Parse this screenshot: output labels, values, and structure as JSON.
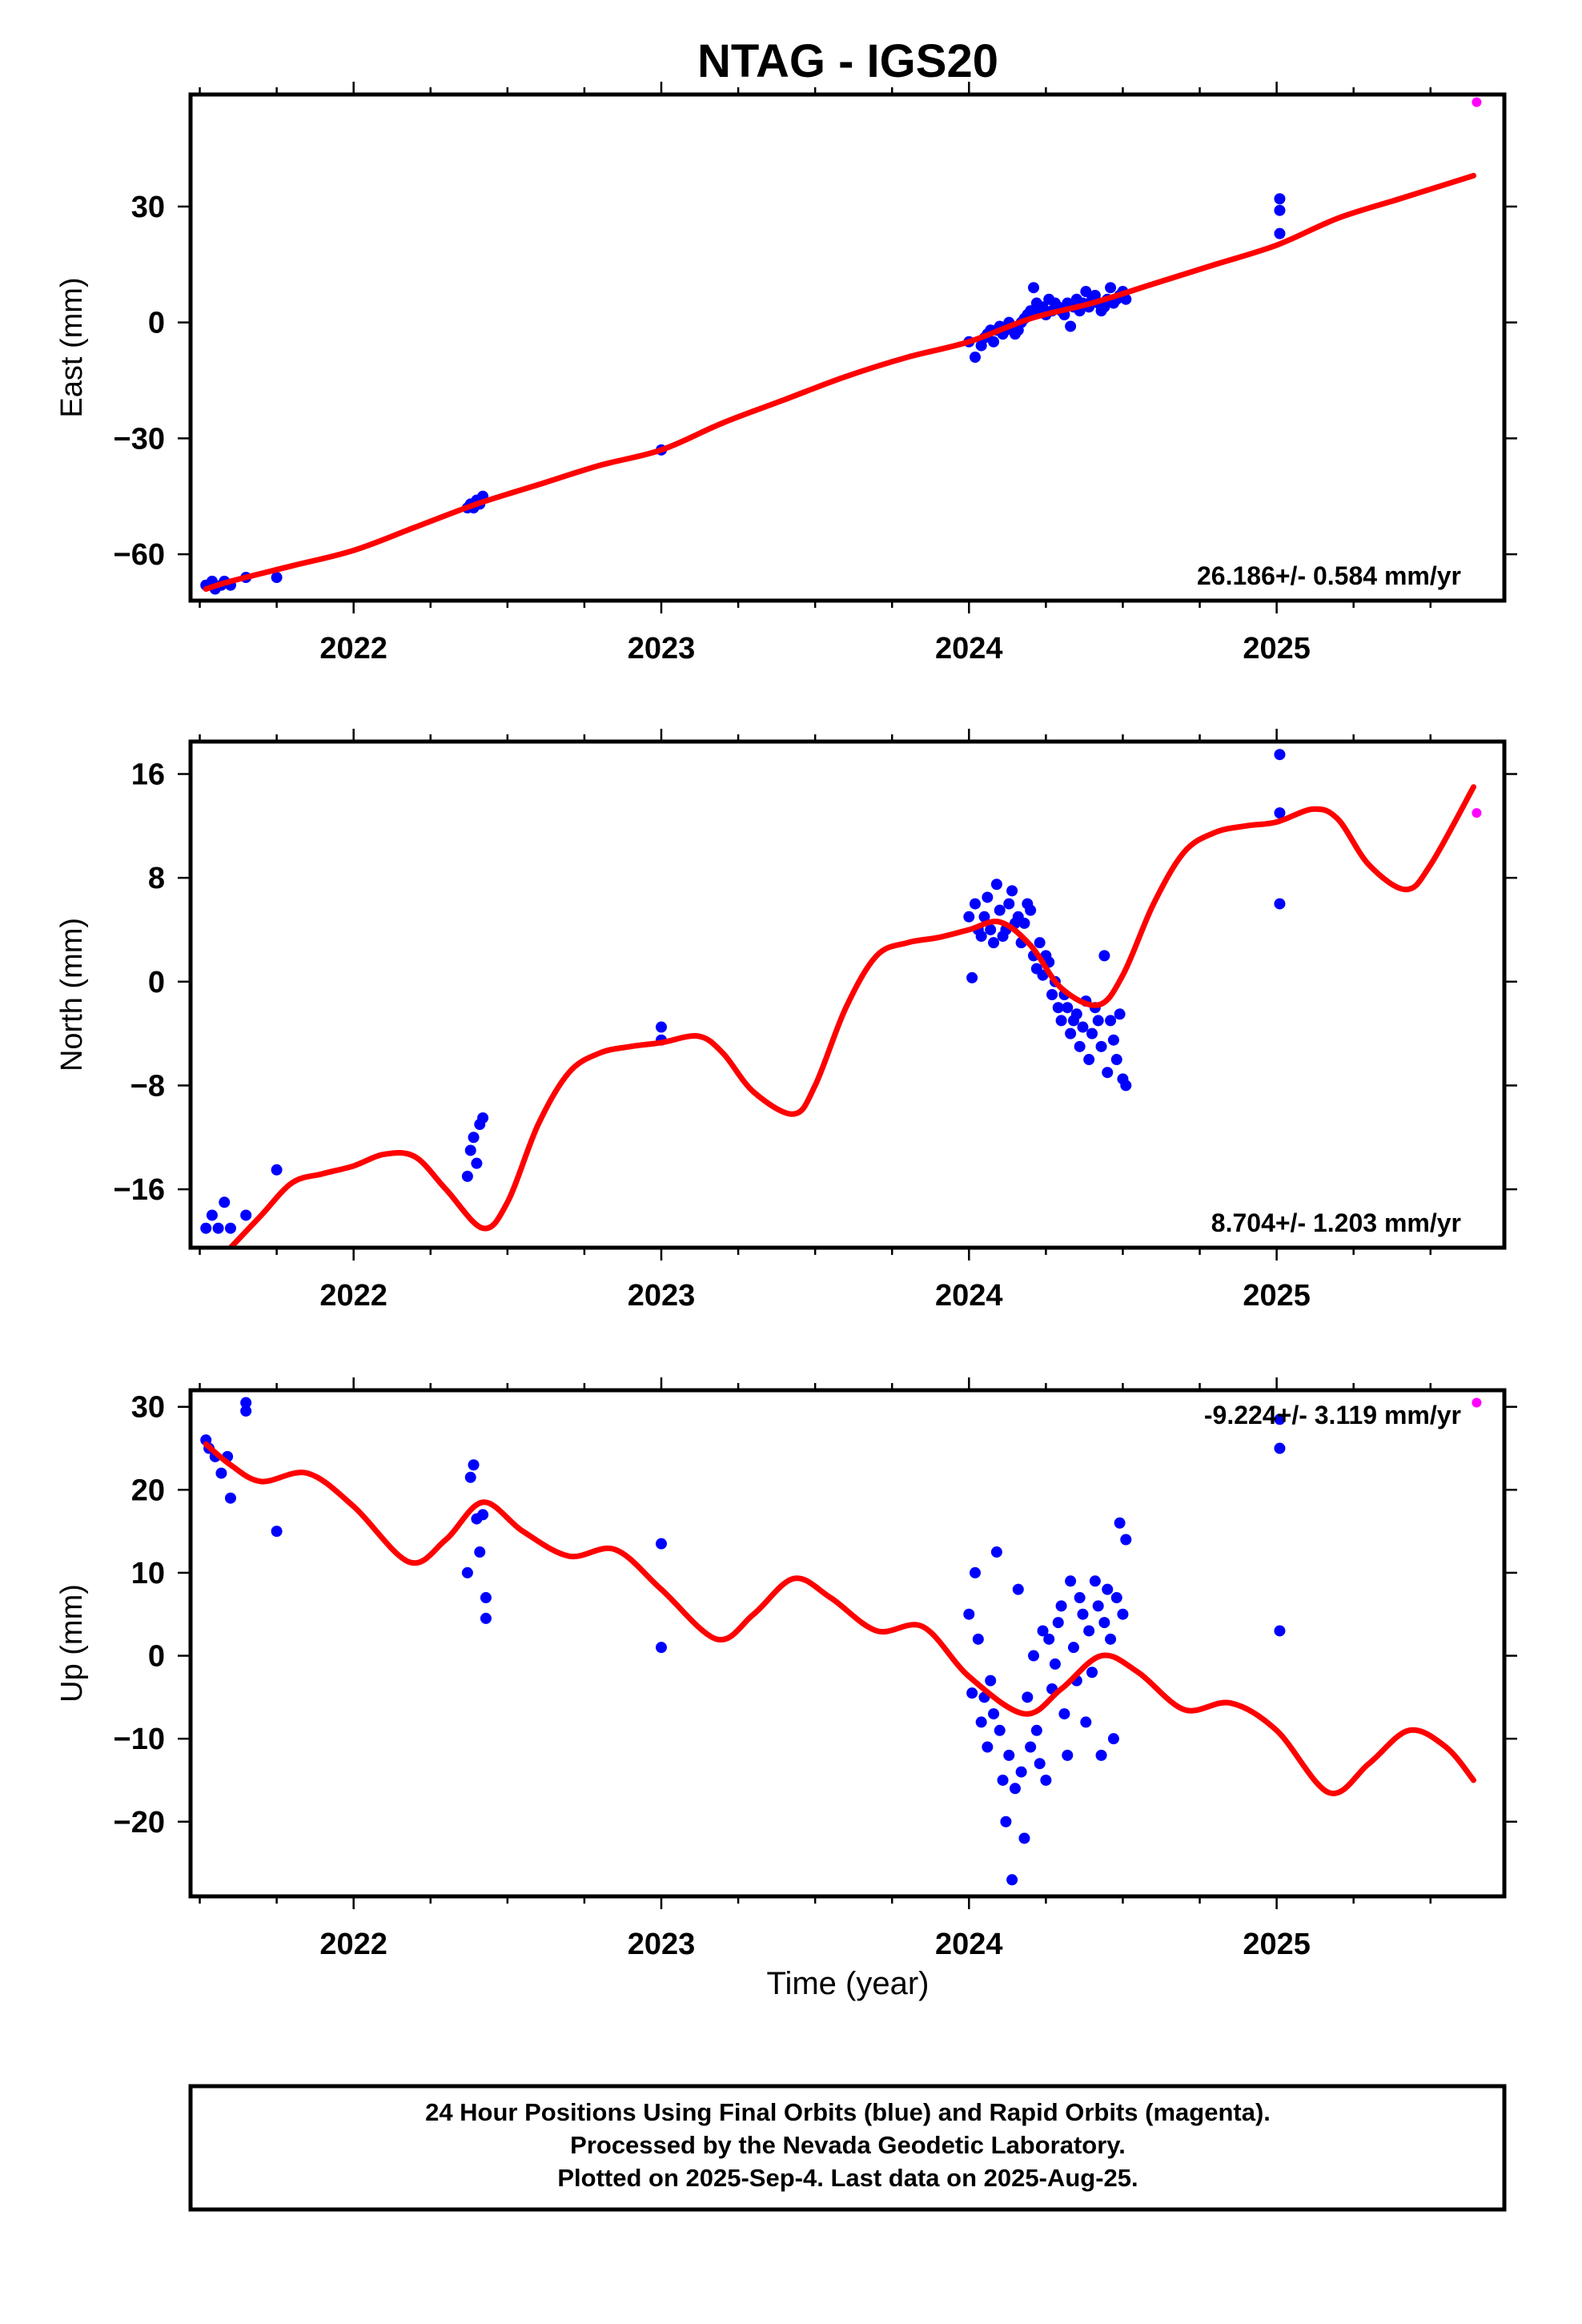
{
  "chart_data": {
    "type": "scatter",
    "title": "NTAG - IGS20",
    "xlabel": "Time (year)",
    "xlim": [
      2021.47,
      2025.74
    ],
    "x_ticks": [
      "2022",
      "2023",
      "2024",
      "2025"
    ],
    "colors": {
      "final": "#0000ff",
      "rapid": "#ff00ff",
      "model": "#ff0000"
    },
    "panels": [
      {
        "id": "east",
        "ylabel": "East (mm)",
        "ylim": [
          -72,
          59
        ],
        "y_ticks": [
          30,
          0,
          -30,
          -60
        ],
        "y_tick_labels": [
          "30",
          "0",
          "−30",
          "−60"
        ],
        "rate": "26.186+/- 0.584 mm/yr",
        "model": {
          "x": [
            2021.52,
            2021.6,
            2021.8,
            2022.0,
            2022.2,
            2022.4,
            2022.6,
            2022.8,
            2023.0,
            2023.2,
            2023.4,
            2023.6,
            2023.8,
            2024.0,
            2024.2,
            2024.4,
            2024.6,
            2024.8,
            2025.0,
            2025.2,
            2025.4,
            2025.64
          ],
          "y": [
            -69,
            -67,
            -63,
            -59,
            -53,
            -47,
            -42,
            -37,
            -33,
            -26,
            -20,
            -14,
            -9,
            -5,
            1,
            5,
            10,
            15,
            20,
            27,
            32,
            38
          ]
        },
        "final": {
          "x": [
            2021.52,
            2021.54,
            2021.55,
            2021.57,
            2021.58,
            2021.6,
            2021.65,
            2021.75,
            2022.37,
            2022.38,
            2022.39,
            2022.4,
            2022.41,
            2022.42,
            2023.0,
            2024.0,
            2024.02,
            2024.04,
            2024.05,
            2024.06,
            2024.07,
            2024.08,
            2024.09,
            2024.1,
            2024.11,
            2024.12,
            2024.13,
            2024.14,
            2024.15,
            2024.16,
            2024.17,
            2024.18,
            2024.19,
            2024.2,
            2024.21,
            2024.22,
            2024.23,
            2024.24,
            2024.25,
            2024.26,
            2024.27,
            2024.28,
            2024.29,
            2024.3,
            2024.31,
            2024.32,
            2024.33,
            2024.34,
            2024.35,
            2024.36,
            2024.37,
            2024.38,
            2024.39,
            2024.4,
            2024.41,
            2024.42,
            2024.43,
            2024.44,
            2024.45,
            2024.46,
            2024.47,
            2024.48,
            2024.49,
            2024.5,
            2024.51,
            2025.01,
            2025.01,
            2025.01
          ],
          "y": [
            -68,
            -67,
            -69,
            -68,
            -67,
            -68,
            -66,
            -66,
            -48,
            -47,
            -48,
            -46,
            -47,
            -45,
            -33,
            -5,
            -9,
            -6,
            -4,
            -3,
            -2,
            -5,
            -2,
            -1,
            -3,
            -2,
            0,
            -1,
            -3,
            -2,
            0,
            1,
            2,
            3,
            9,
            5,
            3,
            4,
            2,
            6,
            3,
            5,
            4,
            3,
            2,
            5,
            -1,
            4,
            6,
            3,
            5,
            8,
            4,
            6,
            7,
            5,
            3,
            4,
            6,
            9,
            5,
            6,
            7,
            8,
            6,
            32,
            29,
            23
          ]
        },
        "rapid": {
          "x": [
            2025.65
          ],
          "y": [
            57
          ]
        }
      },
      {
        "id": "north",
        "ylabel": "North (mm)",
        "ylim": [
          -20.5,
          18.5
        ],
        "y_ticks": [
          16,
          8,
          0,
          -8,
          -16
        ],
        "y_tick_labels": [
          "16",
          "8",
          "0",
          "−8",
          "−16"
        ],
        "rate": "8.704+/- 1.203 mm/yr",
        "model": {
          "x": [
            2021.6,
            2021.7,
            2021.8,
            2021.9,
            2022.0,
            2022.1,
            2022.2,
            2022.3,
            2022.42,
            2022.5,
            2022.6,
            2022.7,
            2022.8,
            2022.9,
            2023.0,
            2023.12,
            2023.2,
            2023.3,
            2023.43,
            2023.5,
            2023.6,
            2023.7,
            2023.8,
            2023.9,
            2024.0,
            2024.1,
            2024.2,
            2024.3,
            2024.42,
            2024.5,
            2024.6,
            2024.7,
            2024.8,
            2024.9,
            2025.0,
            2025.12,
            2025.2,
            2025.3,
            2025.42,
            2025.5,
            2025.64
          ],
          "y": [
            -20.5,
            -18,
            -15.5,
            -14.8,
            -14.2,
            -13.3,
            -13.5,
            -16,
            -19,
            -17,
            -11,
            -7,
            -5.5,
            -5,
            -4.7,
            -4.2,
            -5.5,
            -8.5,
            -10.2,
            -8,
            -2,
            2,
            3,
            3.4,
            4,
            4.6,
            2.8,
            -0.5,
            -1.8,
            0.5,
            6,
            10,
            11.5,
            12,
            12.3,
            13.3,
            12.5,
            9,
            7.1,
            9,
            15
          ]
        },
        "final": {
          "x": [
            2021.52,
            2021.54,
            2021.56,
            2021.58,
            2021.6,
            2021.65,
            2021.75,
            2022.37,
            2022.38,
            2022.39,
            2022.4,
            2022.41,
            2022.42,
            2023.0,
            2023.0,
            2024.0,
            2024.01,
            2024.02,
            2024.03,
            2024.04,
            2024.05,
            2024.06,
            2024.07,
            2024.08,
            2024.09,
            2024.1,
            2024.11,
            2024.12,
            2024.13,
            2024.14,
            2024.15,
            2024.16,
            2024.17,
            2024.18,
            2024.19,
            2024.2,
            2024.21,
            2024.22,
            2024.23,
            2024.24,
            2024.25,
            2024.26,
            2024.27,
            2024.28,
            2024.29,
            2024.3,
            2024.31,
            2024.32,
            2024.33,
            2024.34,
            2024.35,
            2024.36,
            2024.37,
            2024.38,
            2024.39,
            2024.4,
            2024.41,
            2024.42,
            2024.43,
            2024.44,
            2024.45,
            2024.46,
            2024.47,
            2024.48,
            2024.49,
            2024.5,
            2024.51,
            2025.01,
            2025.01,
            2025.01
          ],
          "y": [
            -19,
            -18,
            -19,
            -17,
            -19,
            -18,
            -14.5,
            -15,
            -13,
            -12,
            -14,
            -11,
            -10.5,
            -3.5,
            -4.5,
            5,
            0.3,
            6,
            4,
            3.5,
            5,
            6.5,
            4,
            3,
            7.5,
            5.5,
            3.5,
            4,
            6,
            7,
            4.5,
            5,
            3,
            4.5,
            6,
            5.5,
            2,
            1,
            3,
            0.5,
            2,
            1.5,
            -1,
            0,
            -2,
            -3,
            -1,
            -2,
            -4,
            -3,
            -2.5,
            -5,
            -3.5,
            -1.5,
            -6,
            -4,
            -2,
            -3,
            -5,
            2,
            -7,
            -3,
            -4.5,
            -6,
            -2.5,
            -7.5,
            -8,
            17.5,
            13,
            6
          ]
        },
        "rapid": {
          "x": [
            2025.65
          ],
          "y": [
            13
          ]
        }
      },
      {
        "id": "up",
        "ylabel": "Up (mm)",
        "ylim": [
          -29,
          32
        ],
        "y_ticks": [
          30,
          20,
          10,
          0,
          -10,
          -20
        ],
        "y_tick_labels": [
          "30",
          "20",
          "10",
          "0",
          "−10",
          "−20"
        ],
        "rate": "-9.224+/- 3.119 mm/yr",
        "model": {
          "x": [
            2021.52,
            2021.6,
            2021.7,
            2021.85,
            2022.0,
            2022.18,
            2022.3,
            2022.42,
            2022.55,
            2022.7,
            2022.85,
            2023.0,
            2023.18,
            2023.3,
            2023.43,
            2023.55,
            2023.7,
            2023.85,
            2024.0,
            2024.18,
            2024.3,
            2024.43,
            2024.55,
            2024.7,
            2024.85,
            2025.0,
            2025.17,
            2025.3,
            2025.43,
            2025.55,
            2025.64
          ],
          "y": [
            25.5,
            23,
            21,
            22,
            18,
            11.3,
            14,
            18.5,
            15,
            12,
            12.8,
            8,
            2,
            5,
            9.3,
            7,
            3,
            3.5,
            -2.5,
            -7,
            -4,
            0,
            -2,
            -6.5,
            -5.7,
            -9,
            -16.5,
            -13,
            -9,
            -11,
            -15
          ]
        },
        "final": {
          "x": [
            2021.52,
            2021.53,
            2021.55,
            2021.57,
            2021.59,
            2021.6,
            2021.65,
            2021.65,
            2021.75,
            2022.37,
            2022.38,
            2022.39,
            2022.4,
            2022.41,
            2022.42,
            2022.43,
            2022.43,
            2023.0,
            2023.0,
            2024.0,
            2024.01,
            2024.02,
            2024.03,
            2024.04,
            2024.05,
            2024.06,
            2024.07,
            2024.08,
            2024.09,
            2024.1,
            2024.11,
            2024.12,
            2024.13,
            2024.14,
            2024.15,
            2024.16,
            2024.17,
            2024.18,
            2024.19,
            2024.2,
            2024.21,
            2024.22,
            2024.23,
            2024.24,
            2024.25,
            2024.26,
            2024.27,
            2024.28,
            2024.29,
            2024.3,
            2024.31,
            2024.32,
            2024.33,
            2024.34,
            2024.35,
            2024.36,
            2024.37,
            2024.38,
            2024.39,
            2024.4,
            2024.41,
            2024.42,
            2024.43,
            2024.44,
            2024.45,
            2024.46,
            2024.47,
            2024.48,
            2024.49,
            2024.5,
            2024.51,
            2025.01,
            2025.01,
            2025.01
          ],
          "y": [
            26,
            25,
            24,
            22,
            24,
            19,
            29.5,
            30.5,
            15,
            10,
            21.5,
            23,
            16.5,
            12.5,
            17,
            7,
            4.5,
            13.5,
            1,
            5,
            -4.5,
            10,
            2,
            -8,
            -5,
            -11,
            -3,
            -7,
            12.5,
            -9,
            -15,
            -20,
            -12,
            -27,
            -16,
            8,
            -14,
            -22,
            -5,
            -11,
            0,
            -9,
            -13,
            3,
            -15,
            2,
            -4,
            -1,
            4,
            6,
            -7,
            -12,
            9,
            1,
            -3,
            7,
            5,
            -8,
            3,
            -2,
            9,
            6,
            -12,
            4,
            8,
            2,
            -10,
            7,
            16,
            5,
            14,
            28.5,
            25,
            3
          ]
        },
        "rapid": {
          "x": [
            2025.65
          ],
          "y": [
            30.5
          ]
        }
      }
    ]
  },
  "footer": {
    "line1": "24 Hour Positions Using Final Orbits (blue) and Rapid Orbits (magenta).",
    "line2": "Processed by the Nevada Geodetic Laboratory.",
    "line3": "Plotted on 2025-Sep-4. Last data on 2025-Aug-25."
  }
}
